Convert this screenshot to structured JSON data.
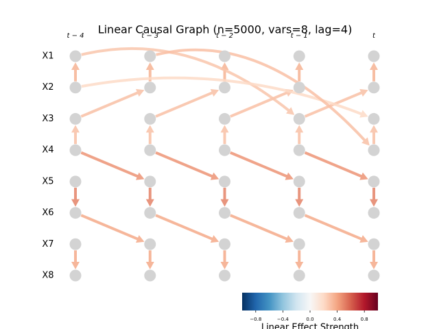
{
  "title": "Linear Causal Graph (n=5000, vars=8, lag=4)",
  "time_labels": [
    "t − 4",
    "t − 3",
    "t − 2",
    "t − 1",
    "t"
  ],
  "variables": [
    "X1",
    "X2",
    "X3",
    "X4",
    "X5",
    "X6",
    "X7",
    "X8"
  ],
  "colormap": "RdBu_r",
  "edges": [
    {
      "from_var": 1,
      "from_time": 0,
      "to_var": 0,
      "to_time": 0,
      "strength": 0.35
    },
    {
      "from_var": 1,
      "from_time": 1,
      "to_var": 0,
      "to_time": 1,
      "strength": 0.35
    },
    {
      "from_var": 1,
      "from_time": 2,
      "to_var": 0,
      "to_time": 2,
      "strength": 0.35
    },
    {
      "from_var": 1,
      "from_time": 3,
      "to_var": 0,
      "to_time": 3,
      "strength": 0.35
    },
    {
      "from_var": 1,
      "from_time": 4,
      "to_var": 0,
      "to_time": 4,
      "strength": 0.35
    },
    {
      "from_var": 3,
      "from_time": 0,
      "to_var": 2,
      "to_time": 0,
      "strength": 0.3
    },
    {
      "from_var": 3,
      "from_time": 1,
      "to_var": 2,
      "to_time": 1,
      "strength": 0.3
    },
    {
      "from_var": 3,
      "from_time": 2,
      "to_var": 2,
      "to_time": 2,
      "strength": 0.3
    },
    {
      "from_var": 3,
      "from_time": 3,
      "to_var": 2,
      "to_time": 3,
      "strength": 0.3
    },
    {
      "from_var": 3,
      "from_time": 4,
      "to_var": 2,
      "to_time": 4,
      "strength": 0.3
    },
    {
      "from_var": 4,
      "from_time": 0,
      "to_var": 5,
      "to_time": 0,
      "strength": 0.5
    },
    {
      "from_var": 4,
      "from_time": 1,
      "to_var": 5,
      "to_time": 1,
      "strength": 0.5
    },
    {
      "from_var": 4,
      "from_time": 2,
      "to_var": 5,
      "to_time": 2,
      "strength": 0.5
    },
    {
      "from_var": 4,
      "from_time": 3,
      "to_var": 5,
      "to_time": 3,
      "strength": 0.5
    },
    {
      "from_var": 4,
      "from_time": 4,
      "to_var": 5,
      "to_time": 4,
      "strength": 0.5
    },
    {
      "from_var": 6,
      "from_time": 0,
      "to_var": 7,
      "to_time": 0,
      "strength": 0.38
    },
    {
      "from_var": 6,
      "from_time": 1,
      "to_var": 7,
      "to_time": 1,
      "strength": 0.38
    },
    {
      "from_var": 6,
      "from_time": 2,
      "to_var": 7,
      "to_time": 2,
      "strength": 0.38
    },
    {
      "from_var": 6,
      "from_time": 3,
      "to_var": 7,
      "to_time": 3,
      "strength": 0.38
    },
    {
      "from_var": 6,
      "from_time": 4,
      "to_var": 7,
      "to_time": 4,
      "strength": 0.38
    },
    {
      "from_var": 2,
      "from_time": 0,
      "to_var": 1,
      "to_time": 1,
      "strength": 0.3
    },
    {
      "from_var": 2,
      "from_time": 1,
      "to_var": 1,
      "to_time": 2,
      "strength": 0.3
    },
    {
      "from_var": 2,
      "from_time": 2,
      "to_var": 1,
      "to_time": 3,
      "strength": 0.3
    },
    {
      "from_var": 2,
      "from_time": 3,
      "to_var": 1,
      "to_time": 4,
      "strength": 0.3
    },
    {
      "from_var": 3,
      "from_time": 0,
      "to_var": 4,
      "to_time": 1,
      "strength": 0.45
    },
    {
      "from_var": 3,
      "from_time": 1,
      "to_var": 4,
      "to_time": 2,
      "strength": 0.45
    },
    {
      "from_var": 3,
      "from_time": 2,
      "to_var": 4,
      "to_time": 3,
      "strength": 0.45
    },
    {
      "from_var": 3,
      "from_time": 3,
      "to_var": 4,
      "to_time": 4,
      "strength": 0.45
    },
    {
      "from_var": 5,
      "from_time": 0,
      "to_var": 6,
      "to_time": 1,
      "strength": 0.38
    },
    {
      "from_var": 5,
      "from_time": 1,
      "to_var": 6,
      "to_time": 2,
      "strength": 0.38
    },
    {
      "from_var": 5,
      "from_time": 2,
      "to_var": 6,
      "to_time": 3,
      "strength": 0.38
    },
    {
      "from_var": 5,
      "from_time": 3,
      "to_var": 6,
      "to_time": 4,
      "strength": 0.38
    },
    {
      "from_var": 0,
      "from_time": 0,
      "to_var": 2,
      "to_time": 3,
      "strength": 0.28
    },
    {
      "from_var": 1,
      "from_time": 0,
      "to_var": 2,
      "to_time": 4,
      "strength": 0.2
    },
    {
      "from_var": 0,
      "from_time": 1,
      "to_var": 3,
      "to_time": 4,
      "strength": 0.3
    }
  ],
  "colorbar": {
    "clim": [
      -1,
      1
    ],
    "ticks": [
      {
        "value": -0.8,
        "label": "−0.8"
      },
      {
        "value": -0.4,
        "label": "−0.4"
      },
      {
        "value": 0,
        "label": "0.0"
      },
      0.4,
      0.8
    ],
    "label": "Linear Effect Strength"
  }
}
